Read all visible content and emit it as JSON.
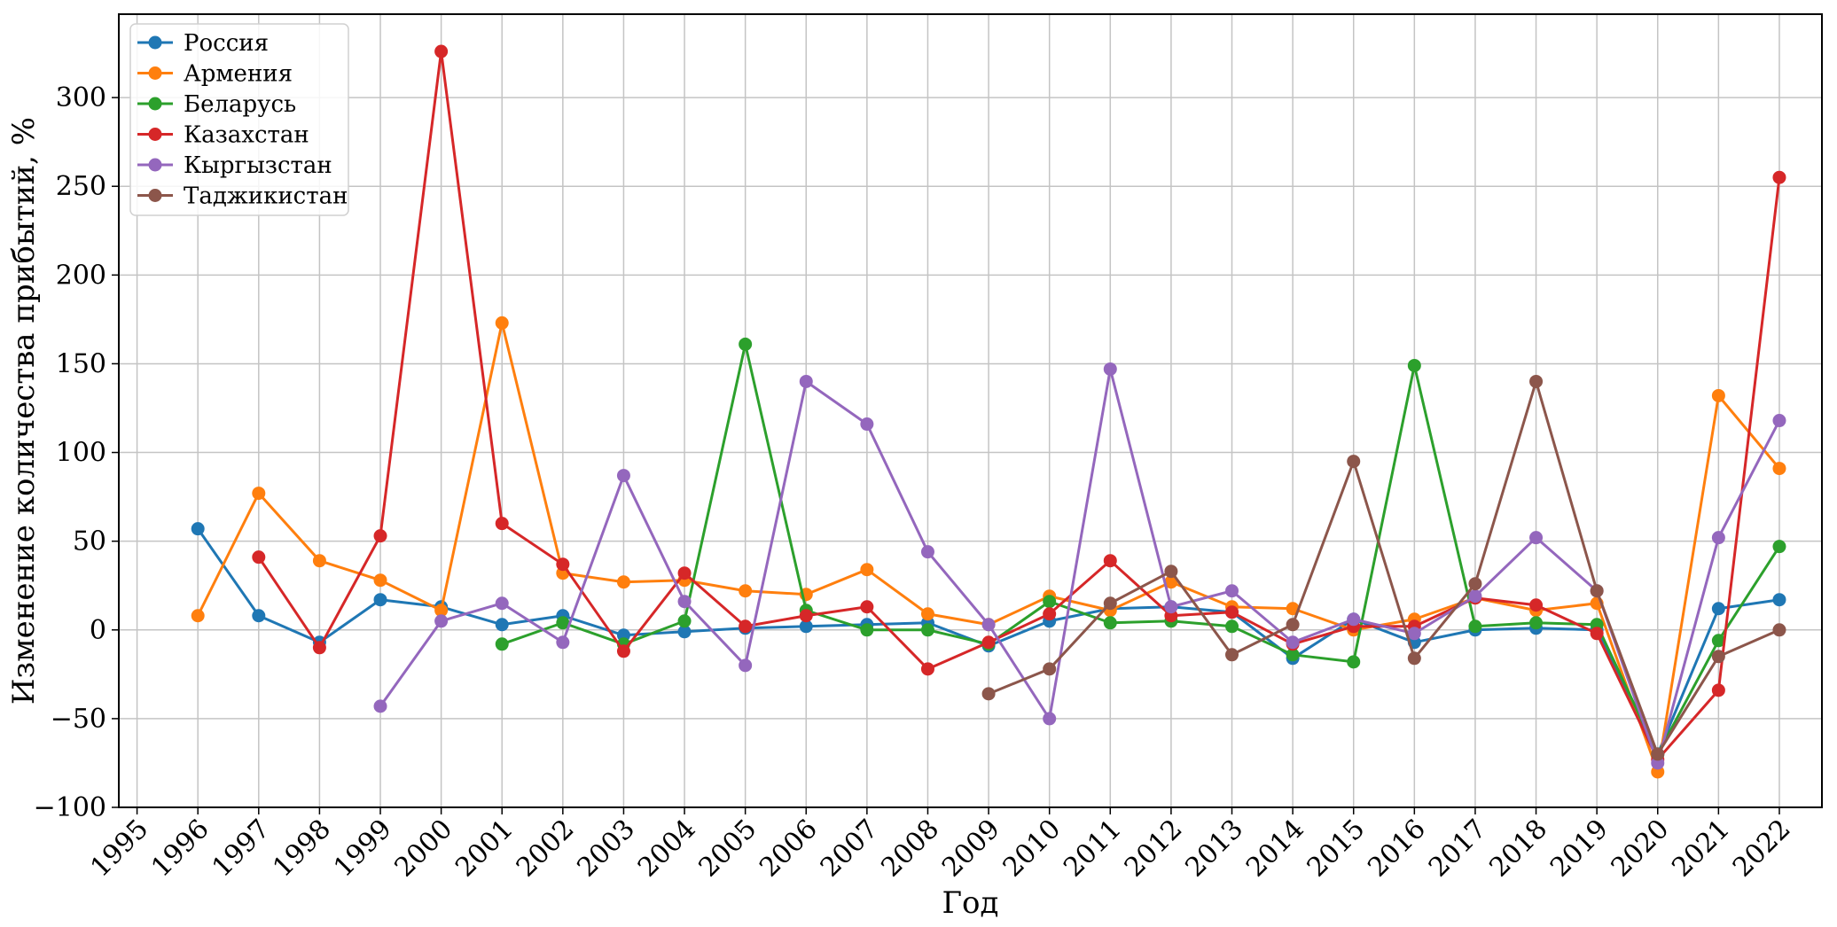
{
  "chart_data": {
    "type": "line",
    "xlabel": "Год",
    "ylabel": "Изменение количества прибытий, %",
    "x": [
      1995,
      1996,
      1997,
      1998,
      1999,
      2000,
      2001,
      2002,
      2003,
      2004,
      2005,
      2006,
      2007,
      2008,
      2009,
      2010,
      2011,
      2012,
      2013,
      2014,
      2015,
      2016,
      2017,
      2018,
      2019,
      2020,
      2021,
      2022
    ],
    "xticklabels": [
      "1995",
      "1996",
      "1997",
      "1998",
      "1999",
      "2000",
      "2001",
      "2002",
      "2003",
      "2004",
      "2005",
      "2006",
      "2007",
      "2008",
      "2009",
      "2010",
      "2011",
      "2012",
      "2013",
      "2014",
      "2015",
      "2016",
      "2017",
      "2018",
      "2019",
      "2020",
      "2021",
      "2022"
    ],
    "xlim": [
      1994.7,
      2022.7
    ],
    "ylim": [
      -100,
      347
    ],
    "yticks": [
      -100,
      -50,
      0,
      50,
      100,
      150,
      200,
      250,
      300
    ],
    "yticklabels": [
      "−100",
      "−50",
      "0",
      "50",
      "100",
      "150",
      "200",
      "250",
      "300"
    ],
    "grid": true,
    "legend_position": "top-left",
    "series": [
      {
        "name": "Россия",
        "color": "#1f77b4",
        "values": [
          null,
          57,
          8,
          -7,
          17,
          13,
          3,
          8,
          -3,
          -1,
          1,
          2,
          3,
          4,
          -9,
          5,
          12,
          13,
          10,
          -16,
          6,
          -7,
          0,
          1,
          0,
          -70,
          12,
          17
        ]
      },
      {
        "name": "Армения",
        "color": "#ff7f0e",
        "values": [
          null,
          8,
          77,
          39,
          28,
          11,
          173,
          32,
          27,
          28,
          22,
          20,
          34,
          9,
          3,
          19,
          11,
          27,
          13,
          12,
          0,
          6,
          18,
          11,
          15,
          -80,
          132,
          91
        ]
      },
      {
        "name": "Беларусь",
        "color": "#2ca02c",
        "values": [
          null,
          null,
          null,
          null,
          null,
          null,
          -8,
          4,
          -8,
          5,
          161,
          11,
          0,
          0,
          -8,
          16,
          4,
          5,
          2,
          -14,
          -18,
          149,
          2,
          4,
          3,
          -70,
          -6,
          47
        ]
      },
      {
        "name": "Казахстан",
        "color": "#d62728",
        "values": [
          null,
          null,
          41,
          -10,
          53,
          326,
          60,
          37,
          -12,
          32,
          2,
          8,
          13,
          -22,
          -7,
          9,
          39,
          8,
          10,
          -8,
          2,
          2,
          18,
          14,
          -2,
          -73,
          -34,
          255
        ]
      },
      {
        "name": "Кыргызстан",
        "color": "#9467bd",
        "values": [
          null,
          null,
          null,
          null,
          -43,
          5,
          15,
          -7,
          87,
          16,
          -20,
          140,
          116,
          44,
          3,
          -50,
          147,
          13,
          22,
          -7,
          6,
          -2,
          19,
          52,
          22,
          -75,
          52,
          118
        ]
      },
      {
        "name": "Таджикистан",
        "color": "#8c564b",
        "values": [
          null,
          null,
          null,
          null,
          null,
          null,
          null,
          null,
          null,
          null,
          null,
          null,
          null,
          null,
          -36,
          -22,
          15,
          33,
          -14,
          3,
          95,
          -16,
          26,
          140,
          22,
          -70,
          -15,
          0
        ]
      }
    ]
  }
}
